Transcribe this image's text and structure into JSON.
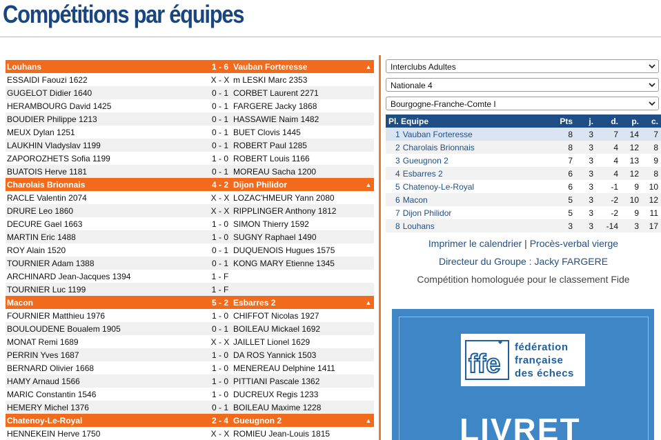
{
  "page": {
    "title": "Compétitions par équipes"
  },
  "matches": [
    {
      "home": "Louhans",
      "score": "1 - 6",
      "away": "Vauban Forteresse",
      "arrow": "▲",
      "games": [
        [
          "ESSAIDI Faouzi 1622",
          "X - X",
          "m LESKI Marc 2353"
        ],
        [
          "GUGELOT Didier 1640",
          "0 - 1",
          "CORBET Laurent 2271"
        ],
        [
          "HERAMBOURG David 1425",
          "0 - 1",
          "FARGERE Jacky 1868"
        ],
        [
          "BOUDIER Philippe 1213",
          "0 - 1",
          "HASSAWIE Naim 1482"
        ],
        [
          "MEUX Dylan 1251",
          "0 - 1",
          "BUET Clovis 1445"
        ],
        [
          "LAUKHIN Vladyslav 1199",
          "0 - 1",
          "ROBERT Paul 1285"
        ],
        [
          "ZAPOROZHETS Sofia 1199",
          "1 - 0",
          "ROBERT Louis 1166"
        ],
        [
          "BUATOIS Herve 1181",
          "0 - 1",
          "MOREAU Sacha 1200"
        ]
      ]
    },
    {
      "home": "Charolais Brionnais",
      "score": "4 - 2",
      "away": "Dijon Philidor",
      "arrow": "▲",
      "games": [
        [
          "RACLE Valentin 2074",
          "X - X",
          "LOZAC'HMEUR Yann 2080"
        ],
        [
          "DRURE Leo 1860",
          "X - X",
          "RIPPLINGER Anthony 1812"
        ],
        [
          "DECURE Gael 1663",
          "1 - 0",
          "SIMON Thierry 1592"
        ],
        [
          "MARTIN Eric 1488",
          "1 - 0",
          "SUGNY Raphael 1490"
        ],
        [
          "ROY Alain 1520",
          "0 - 1",
          "DUQUENOIS Hugues 1575"
        ],
        [
          "TOURNIER Adam 1388",
          "0 - 1",
          "KONG MARY Etienne 1345"
        ],
        [
          "ARCHINARD Jean-Jacques 1394",
          "1 - F",
          ""
        ],
        [
          "TOURNIER Luc 1199",
          "1 - F",
          ""
        ]
      ]
    },
    {
      "home": "Macon",
      "score": "5 - 2",
      "away": "Esbarres 2",
      "arrow": "▲",
      "games": [
        [
          "FOURNIER Matthieu 1976",
          "1 - 0",
          "CHIFFOT Nicolas 1927"
        ],
        [
          "BOULOUDENE Boualem 1905",
          "0 - 1",
          "BOILEAU Mickael 1692"
        ],
        [
          "MONAT Remi 1689",
          "X - X",
          "JAILLET Lionel 1629"
        ],
        [
          "PERRIN Yves 1687",
          "1 - 0",
          "DA ROS Yannick 1503"
        ],
        [
          "BERNARD Olivier 1668",
          "1 - 0",
          "MENEREAU Delphine 1411"
        ],
        [
          "HAMY Arnaud 1566",
          "1 - 0",
          "PITTIANI Pascale 1362"
        ],
        [
          "MARIC Constantin 1546",
          "1 - 0",
          "DUCREUX Regis 1233"
        ],
        [
          "HEMERY Michel 1376",
          "0 - 1",
          "BOILEAU Maxime 1228"
        ]
      ]
    },
    {
      "home": "Chatenoy-Le-Royal",
      "score": "2 - 4",
      "away": "Gueugnon 2",
      "arrow": "▲",
      "games": [
        [
          "HENNEKEIN Herve 1750",
          "X - X",
          "ROMIEU Jean-Louis 1815"
        ]
      ]
    }
  ],
  "selects": [
    {
      "value": "Interclubs Adultes"
    },
    {
      "value": "Nationale 4"
    },
    {
      "value": "Bourgogne-Franche-Comte I"
    }
  ],
  "ranking": {
    "headers": {
      "team": "Pl. Equipe",
      "pts": "Pts",
      "j": "j.",
      "d": "d.",
      "p": "p.",
      "c": "c."
    },
    "rows": [
      {
        "pos": "1",
        "team": "Vauban Forteresse",
        "pts": "8",
        "j": "3",
        "d": "7",
        "p": "14",
        "c": "7"
      },
      {
        "pos": "2",
        "team": "Charolais Brionnais",
        "pts": "8",
        "j": "3",
        "d": "4",
        "p": "12",
        "c": "8"
      },
      {
        "pos": "3",
        "team": "Gueugnon 2",
        "pts": "7",
        "j": "3",
        "d": "4",
        "p": "13",
        "c": "9"
      },
      {
        "pos": "4",
        "team": "Esbarres 2",
        "pts": "6",
        "j": "3",
        "d": "4",
        "p": "12",
        "c": "8"
      },
      {
        "pos": "5",
        "team": "Chatenoy-Le-Royal",
        "pts": "6",
        "j": "3",
        "d": "-1",
        "p": "9",
        "c": "10"
      },
      {
        "pos": "6",
        "team": "Macon",
        "pts": "5",
        "j": "3",
        "d": "-2",
        "p": "10",
        "c": "12"
      },
      {
        "pos": "7",
        "team": "Dijon Philidor",
        "pts": "5",
        "j": "3",
        "d": "-2",
        "p": "9",
        "c": "11"
      },
      {
        "pos": "8",
        "team": "Louhans",
        "pts": "3",
        "j": "3",
        "d": "-14",
        "p": "3",
        "c": "17"
      }
    ]
  },
  "links": {
    "calendar": "Imprimer le calendrier",
    "separator": "|",
    "report": "Procès-verbal vierge"
  },
  "director": "Directeur du Groupe : Jacky FARGERE",
  "fide_note": "Compétition homologuée pour le classement Fide",
  "banner": {
    "logo_text": [
      "fédération",
      "française",
      "des échecs"
    ],
    "logo_mark": "ffe",
    "headline": "LIVRET"
  },
  "colors": {
    "accent": "#f26b1d",
    "primary": "#1f4e86",
    "title": "#1a4680",
    "banner": "#3f86c6"
  }
}
